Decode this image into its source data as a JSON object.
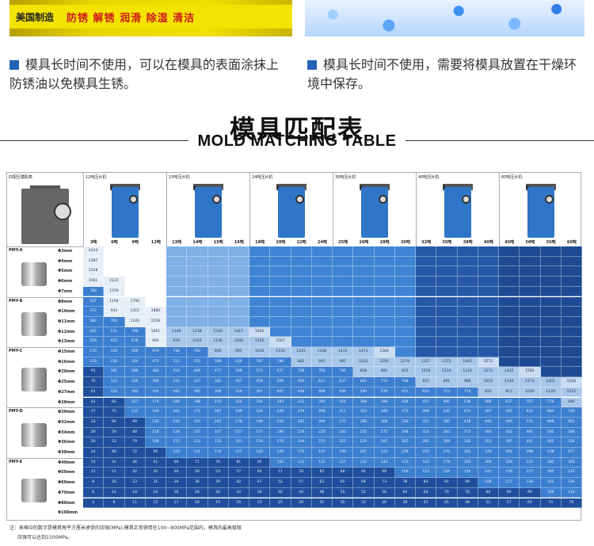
{
  "photo_left": {
    "brand": "美国制造",
    "tags": "防锈 解锈 润滑 除湿 清洁"
  },
  "notes": [
    {
      "text": "模具长时间不使用，可以在模具的表面涂抹上防锈油以免模具生锈。"
    },
    {
      "text": "模具长时间不使用，需要将模具放置在干燥环境中保存。"
    }
  ],
  "title_cn": "模具匹配表",
  "title_en": "MOLD MATCHING TABLE",
  "table": {
    "corner_label": "匹配压模配表",
    "machines": [
      {
        "name": "12吨压片机",
        "tonnages": [
          "3吨",
          "6吨",
          "9吨",
          "12吨"
        ]
      },
      {
        "name": "15吨压片机",
        "tonnages": [
          "13吨",
          "14吨",
          "15吨",
          "16吨"
        ]
      },
      {
        "name": "24吨压片机",
        "tonnages": [
          "18吨",
          "20吨",
          "22吨",
          "24吨"
        ]
      },
      {
        "name": "30吨压片机",
        "tonnages": [
          "25吨",
          "26吨",
          "28吨",
          "30吨"
        ]
      },
      {
        "name": "40吨压片机",
        "tonnages": [
          "32吨",
          "35吨",
          "38吨",
          "40吨"
        ]
      },
      {
        "name": "60吨压片机",
        "tonnages": [
          "45吨",
          "50吨",
          "55吨",
          "60吨"
        ]
      }
    ],
    "mold_groups": [
      {
        "name": "PMY-A",
        "diameters": [
          "Φ3mm",
          "Φ4mm",
          "Φ5mm",
          "Φ6mm",
          "Φ7mm"
        ]
      },
      {
        "name": "PMY-B",
        "diameters": [
          "Φ8mm",
          "Φ10mm",
          "Φ11mm",
          "Φ12mm",
          "Φ13mm"
        ]
      },
      {
        "name": "PMY-C",
        "diameters": [
          "Φ15mm",
          "Φ16mm",
          "Φ20mm",
          "Φ25mm",
          "Φ27mm",
          "Φ28mm"
        ]
      },
      {
        "name": "PMY-D",
        "diameters": [
          "Φ30mm",
          "Φ32mm",
          "Φ34mm",
          "Φ36mm",
          "Φ38mm"
        ]
      },
      {
        "name": "PMY-E",
        "diameters": [
          "Φ40mm",
          "Φ50mm",
          "Φ60mm",
          "Φ70mm",
          "Φ80mm",
          "Φ100mm"
        ]
      }
    ],
    "rows": [
      [
        "4243",
        "",
        "",
        "",
        "",
        "",
        "",
        "",
        "",
        "",
        "",
        "",
        "",
        "",
        "",
        "",
        "",
        "",
        "",
        "",
        "",
        "",
        "",
        ""
      ],
      [
        "2387",
        "",
        "",
        "",
        "",
        "",
        "",
        "",
        "",
        "",
        "",
        "",
        "",
        "",
        "",
        "",
        "",
        "",
        "",
        "",
        "",
        "",
        "",
        ""
      ],
      [
        "1528",
        "",
        "",
        "",
        "",
        "",
        "",
        "",
        "",
        "",
        "",
        "",
        "",
        "",
        "",
        "",
        "",
        "",
        "",
        "",
        "",
        "",
        "",
        ""
      ],
      [
        "1061",
        "2122",
        "",
        "",
        "",
        "",
        "",
        "",
        "",
        "",
        "",
        "",
        "",
        "",
        "",
        "",
        "",
        "",
        "",
        "",
        "",
        "",
        "",
        ""
      ],
      [
        "780",
        "1559",
        "",
        "",
        "",
        "",
        "",
        "",
        "",
        "",
        "",
        "",
        "",
        "",
        "",
        "",
        "",
        "",
        "",
        "",
        "",
        "",
        "",
        ""
      ],
      [
        "597",
        "1194",
        "1790",
        "",
        "",
        "",
        "",
        "",
        "",
        "",
        "",
        "",
        "",
        "",
        "",
        "",
        "",
        "",
        "",
        "",
        "",
        "",
        "",
        ""
      ],
      [
        "472",
        "943",
        "1415",
        "1886",
        "",
        "",
        "",
        "",
        "",
        "",
        "",
        "",
        "",
        "",
        "",
        "",
        "",
        "",
        "",
        "",
        "",
        "",
        "",
        ""
      ],
      [
        "382",
        "764",
        "1146",
        "1528",
        "",
        "",
        "",
        "",
        "",
        "",
        "",
        "",
        "",
        "",
        "",
        "",
        "",
        "",
        "",
        "",
        "",
        "",
        "",
        ""
      ],
      [
        "265",
        "531",
        "796",
        "1061",
        "1149",
        "1238",
        "1326",
        "1415",
        "1592",
        "",
        "",
        "",
        "",
        "",
        "",
        "",
        "",
        "",
        "",
        "",
        "",
        "",
        "",
        ""
      ],
      [
        "226",
        "452",
        "678",
        "904",
        "979",
        "1055",
        "1130",
        "1206",
        "1356",
        "1507",
        "",
        "",
        "",
        "",
        "",
        "",
        "",
        "",
        "",
        "",
        "",
        "",
        "",
        ""
      ],
      [
        "170",
        "340",
        "509",
        "679",
        "736",
        "792",
        "849",
        "905",
        "1019",
        "1132",
        "1245",
        "1358",
        "1415",
        "1471",
        "1584",
        "",
        "",
        "",
        "",
        "",
        "",
        "",
        "",
        ""
      ],
      [
        "118",
        "236",
        "354",
        "472",
        "511",
        "550",
        "589",
        "629",
        "707",
        "786",
        "865",
        "943",
        "982",
        "1022",
        "1100",
        "1179",
        "1257",
        "1375",
        "1493",
        "1572",
        "",
        "",
        "",
        ""
      ],
      [
        "95",
        "191",
        "286",
        "382",
        "414",
        "446",
        "477",
        "509",
        "573",
        "637",
        "700",
        "764",
        "796",
        "828",
        "891",
        "955",
        "1019",
        "1114",
        "1210",
        "1273",
        "1432",
        "1592",
        "",
        ""
      ],
      [
        "76",
        "153",
        "229",
        "306",
        "331",
        "357",
        "382",
        "407",
        "458",
        "509",
        "560",
        "611",
        "637",
        "662",
        "713",
        "764",
        "815",
        "891",
        "968",
        "1019",
        "1146",
        "1273",
        "1401",
        "1528"
      ],
      [
        "61",
        "122",
        "183",
        "244",
        "265",
        "285",
        "306",
        "326",
        "367",
        "407",
        "448",
        "489",
        "509",
        "530",
        "570",
        "611",
        "652",
        "713",
        "774",
        "815",
        "917",
        "1019",
        "1120",
        "1222"
      ],
      [
        "42",
        "85",
        "127",
        "170",
        "184",
        "198",
        "212",
        "226",
        "255",
        "283",
        "311",
        "340",
        "354",
        "368",
        "396",
        "424",
        "453",
        "495",
        "538",
        "566",
        "637",
        "707",
        "778",
        "849"
      ],
      [
        "37",
        "75",
        "112",
        "149",
        "162",
        "174",
        "187",
        "199",
        "224",
        "249",
        "274",
        "299",
        "311",
        "323",
        "348",
        "373",
        "398",
        "435",
        "472",
        "497",
        "560",
        "622",
        "684",
        "746"
      ],
      [
        "33",
        "66",
        "99",
        "132",
        "143",
        "154",
        "165",
        "176",
        "198",
        "220",
        "242",
        "264",
        "275",
        "286",
        "308",
        "330",
        "352",
        "385",
        "418",
        "440",
        "495",
        "551",
        "606",
        "661"
      ],
      [
        "29",
        "59",
        "88",
        "118",
        "128",
        "137",
        "147",
        "157",
        "177",
        "196",
        "216",
        "235",
        "245",
        "255",
        "275",
        "294",
        "314",
        "343",
        "373",
        "393",
        "442",
        "491",
        "540",
        "589"
      ],
      [
        "26",
        "53",
        "79",
        "106",
        "115",
        "123",
        "132",
        "141",
        "159",
        "176",
        "194",
        "212",
        "221",
        "229",
        "247",
        "265",
        "282",
        "309",
        "335",
        "353",
        "397",
        "441",
        "485",
        "529"
      ],
      [
        "24",
        "48",
        "72",
        "95",
        "103",
        "111",
        "119",
        "127",
        "143",
        "159",
        "175",
        "191",
        "199",
        "207",
        "223",
        "239",
        "255",
        "279",
        "302",
        "318",
        "358",
        "398",
        "438",
        "477"
      ],
      [
        "15",
        "31",
        "46",
        "61",
        "66",
        "71",
        "76",
        "81",
        "92",
        "102",
        "112",
        "122",
        "127",
        "132",
        "143",
        "153",
        "163",
        "178",
        "194",
        "204",
        "229",
        "255",
        "280",
        "306"
      ],
      [
        "11",
        "21",
        "32",
        "42",
        "46",
        "50",
        "53",
        "57",
        "64",
        "71",
        "78",
        "85",
        "88",
        "92",
        "99",
        "106",
        "113",
        "124",
        "134",
        "141",
        "159",
        "177",
        "195",
        "212"
      ],
      [
        "8",
        "16",
        "23",
        "31",
        "34",
        "36",
        "39",
        "42",
        "47",
        "52",
        "57",
        "62",
        "65",
        "68",
        "73",
        "78",
        "83",
        "91",
        "99",
        "104",
        "117",
        "130",
        "143",
        "156"
      ],
      [
        "6",
        "12",
        "18",
        "24",
        "26",
        "28",
        "30",
        "32",
        "36",
        "40",
        "44",
        "48",
        "50",
        "52",
        "56",
        "60",
        "64",
        "70",
        "76",
        "80",
        "90",
        "99",
        "109",
        "119"
      ],
      [
        "4",
        "8",
        "11",
        "15",
        "17",
        "18",
        "19",
        "20",
        "23",
        "25",
        "28",
        "31",
        "32",
        "33",
        "36",
        "38",
        "41",
        "45",
        "48",
        "51",
        "57",
        "64",
        "70",
        "76"
      ]
    ]
  },
  "footnote": [
    "注：表格中的数字是模具每平方厘米承受的压强(MPa),模具正常使用在100~800MPa范围内，模具的最高极限",
    "压强可以达到1500MPa。"
  ],
  "colors": {
    "blue_light": "#dfe9f7",
    "blue_mid": "#7fb0e6",
    "blue_strong": "#3f84d4",
    "blue_dark": "#2559a8",
    "blue_darkest": "#1d4a92",
    "accent": "#2563b8"
  }
}
